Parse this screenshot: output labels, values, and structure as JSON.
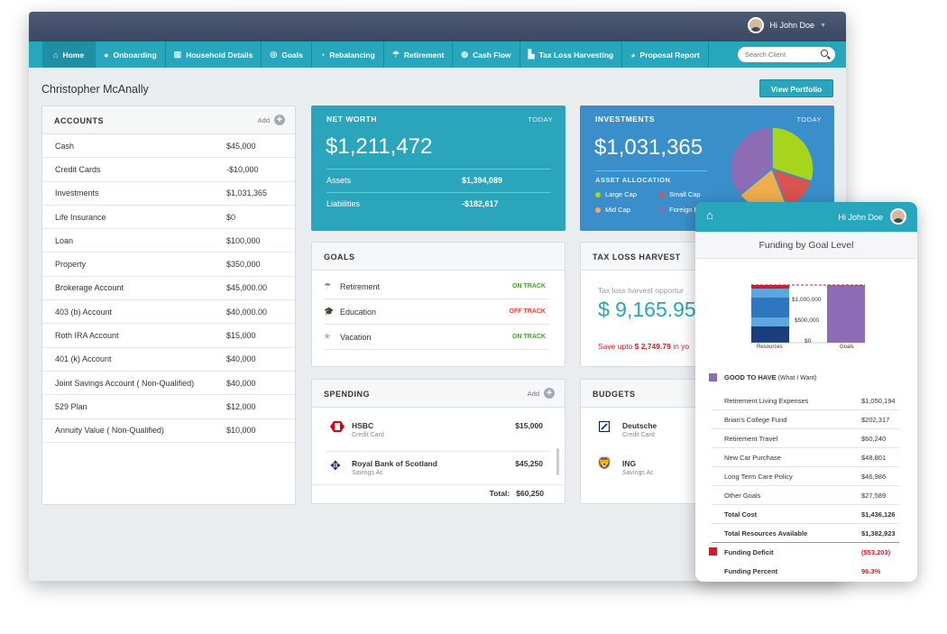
{
  "topbar": {
    "user_greeting": "Hi John Doe"
  },
  "nav": {
    "items": [
      {
        "label": "Home",
        "icon": "home-icon"
      },
      {
        "label": "Onboarding",
        "icon": "user-icon"
      },
      {
        "label": "Household Details",
        "icon": "building-icon"
      },
      {
        "label": "Goals",
        "icon": "target-icon"
      },
      {
        "label": "Rebalancing",
        "icon": "pie-icon"
      },
      {
        "label": "Retirement",
        "icon": "umbrella-icon"
      },
      {
        "label": "Cash Flow",
        "icon": "money-bag-icon"
      },
      {
        "label": "Tax Loss Harvesting",
        "icon": "bar-chart-icon"
      },
      {
        "label": "Proposal Report",
        "icon": "report-icon"
      }
    ],
    "search_placeholder": "Search Client"
  },
  "client_name": "Christopher McAnally",
  "view_portfolio": "View Portfolio",
  "accounts": {
    "title": "ACCOUNTS",
    "add": "Add",
    "rows": [
      {
        "name": "Cash",
        "value": "$45,000"
      },
      {
        "name": "Credit Cards",
        "value": "-$10,000"
      },
      {
        "name": "Investments",
        "value": "$1,031,365"
      },
      {
        "name": "Life Insurance",
        "value": "$0"
      },
      {
        "name": "Loan",
        "value": "$100,000"
      },
      {
        "name": "Property",
        "value": "$350,000"
      },
      {
        "name": "Brokerage Account",
        "value": "$45,000.00"
      },
      {
        "name": "403 (b) Account",
        "value": "$40,000.00"
      },
      {
        "name": "Roth IRA Account",
        "value": "$15,000"
      },
      {
        "name": "401 (k) Account",
        "value": "$40,000"
      },
      {
        "name": "Joint Savings Account ( Non-Qualified)",
        "value": "$40,000"
      },
      {
        "name": "529 Plan",
        "value": "$12,000"
      },
      {
        "name": "Annuity Value ( Non-Qualified)",
        "value": "$10,000"
      }
    ]
  },
  "net_worth": {
    "title": "NET WORTH",
    "period": "TODAY",
    "value": "$1,211,472",
    "assets_label": "Assets",
    "assets": "$1,394,089",
    "liab_label": "Liabilities",
    "liabilities": "-$182,617"
  },
  "investments": {
    "title": "INVESTMENTS",
    "period": "TODAY",
    "value": "$1,031,365",
    "alloc_title": "ASSET ALLOCATION",
    "legend": [
      {
        "label": "Large Cap",
        "color": "#a6d51c"
      },
      {
        "label": "Small Cap",
        "color": "#d9534f"
      },
      {
        "label": "Mid Cap",
        "color": "#f0ad4e"
      },
      {
        "label": "Foreign Dev",
        "color": "#8e6bb5"
      }
    ],
    "pie": [
      {
        "label": "Large Cap",
        "value": 0.3,
        "color": "#a6d51c"
      },
      {
        "label": "Small Cap",
        "value": 0.14,
        "color": "#d9534f"
      },
      {
        "label": "Mid Cap",
        "value": 0.2,
        "color": "#f0ad4e"
      },
      {
        "label": "Foreign Dev",
        "value": 0.36,
        "color": "#8e6bb5"
      }
    ]
  },
  "goals": {
    "title": "GOALS",
    "rows": [
      {
        "name": "Retirement",
        "status": "ON TRACK",
        "color": "#4aa02c",
        "icon": "umbrella-icon"
      },
      {
        "name": "Education",
        "status": "OFF TRACK",
        "color": "#e0452b",
        "icon": "graduation-cap-icon"
      },
      {
        "name": "Vacation",
        "status": "ON TRACK",
        "color": "#4aa02c",
        "icon": "sun-icon"
      }
    ]
  },
  "tax": {
    "title": "TAX LOSS HARVEST",
    "sub": "Tax loss harvest opportur",
    "value": "$ 9,165.95",
    "save_prefix": "Save upto ",
    "save_amount": "$ 2,749.79",
    "save_suffix": " in yo"
  },
  "spending": {
    "title": "SPENDING",
    "add": "Add",
    "rows": [
      {
        "name": "HSBC",
        "sub": "Credit Card",
        "value": "$15,000",
        "icon": "hsbc-logo-icon"
      },
      {
        "name": "Royal Bank of Scotland",
        "sub": "Savings Ac",
        "value": "$45,250",
        "icon": "rbs-logo-icon"
      }
    ],
    "total_label": "Total:",
    "total": "$60,250"
  },
  "budgets": {
    "title": "BUDGETS",
    "rows": [
      {
        "name": "Deutsche",
        "sub": "Credit Card",
        "icon": "deutsche-logo-icon"
      },
      {
        "name": "ING",
        "sub": "Savings Ac",
        "icon": "ing-logo-icon"
      }
    ]
  },
  "mobile": {
    "greeting": "Hi John Doe",
    "title": "Funding by Goal Level",
    "chart_labels": {
      "y1": "$1,000,000",
      "y2": "$500,000",
      "y3": "$0",
      "x1": "Resources",
      "x2": "Goals"
    },
    "good_label": "GOOD TO HAVE",
    "good_sub": " (What I Want)",
    "good_color": "#8e6bb5",
    "rows": [
      {
        "name": "Retirement Living Expenses",
        "value": "$1,050,194"
      },
      {
        "name": "Brian's College Fund",
        "value": "$202,317"
      },
      {
        "name": "Retirement Travel",
        "value": "$60,240"
      },
      {
        "name": "New Car Purchase",
        "value": "$48,801"
      },
      {
        "name": "Long Term Care Policy",
        "value": "$46,986"
      },
      {
        "name": "Other Goals",
        "value": "$27,589"
      }
    ],
    "total_cost_label": "Total Cost",
    "total_cost": "$1,436,126",
    "total_res_label": "Total Resources Available",
    "total_res": "$1,382,923",
    "deficit_label": "Funding Deficit",
    "deficit": "($53,203)",
    "deficit_color": "#c9202f",
    "percent_label": "Funding Percent",
    "percent": "96.3%"
  }
}
